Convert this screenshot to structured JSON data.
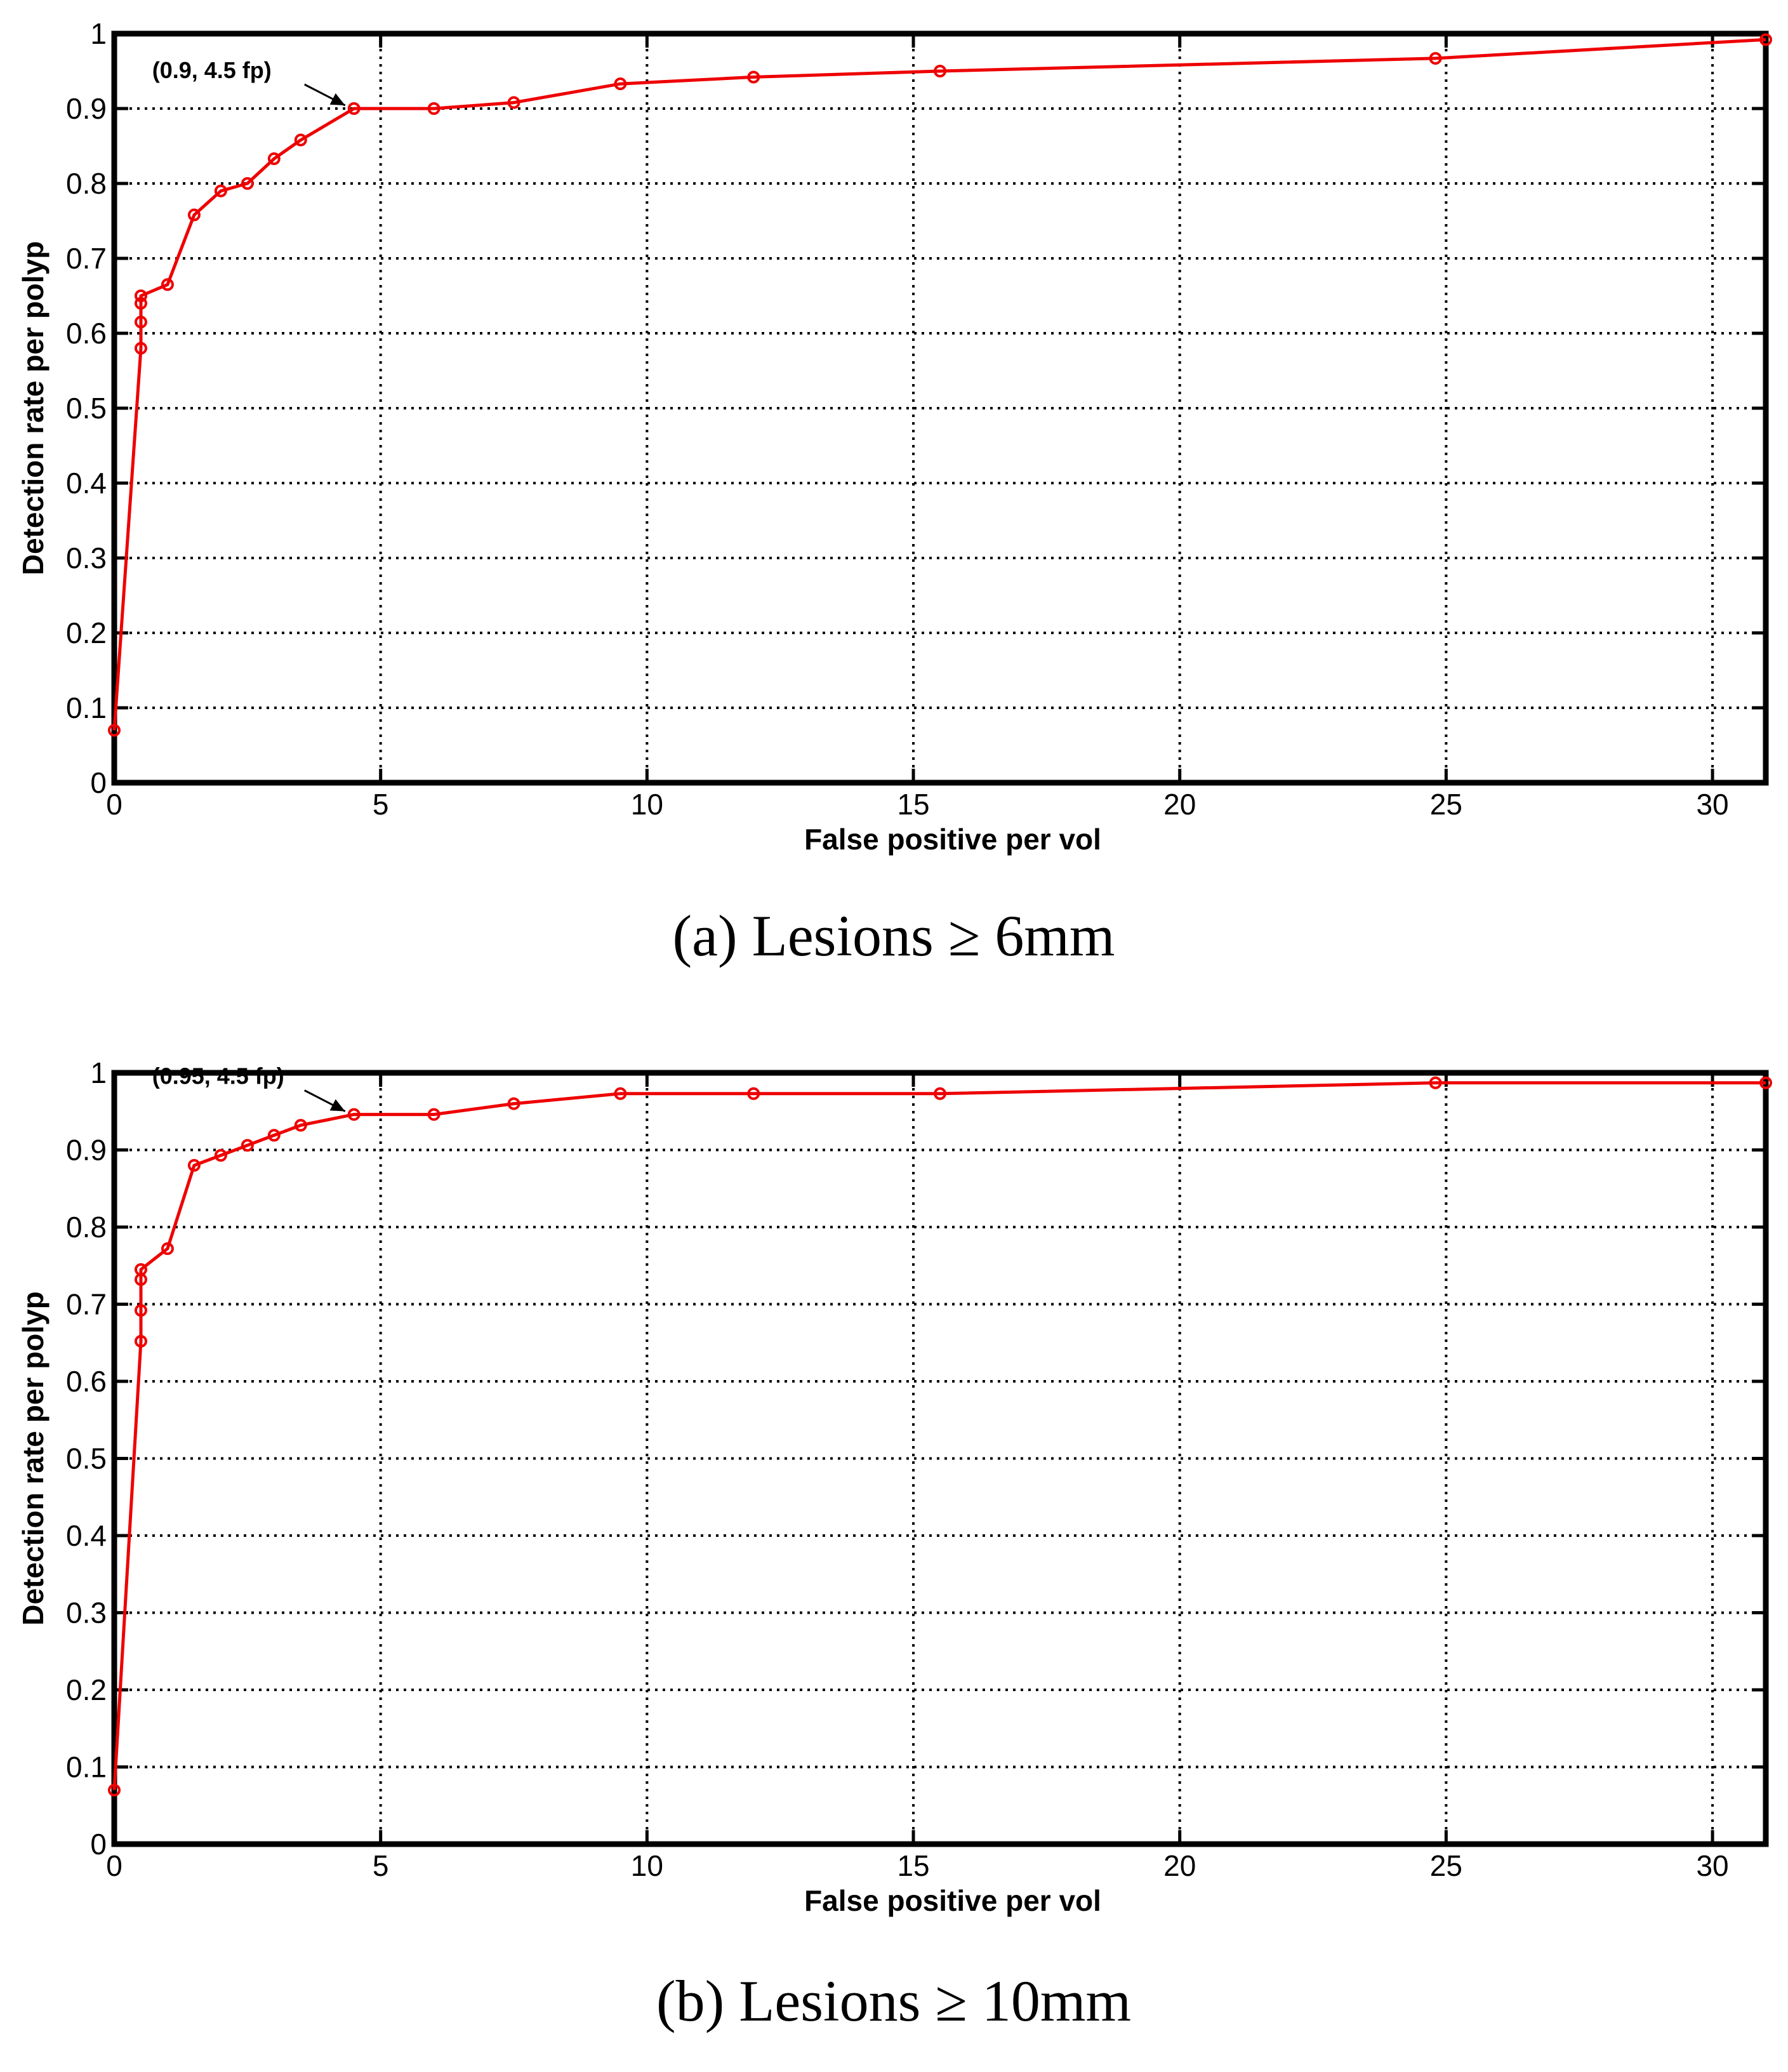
{
  "colors": {
    "series": "#ee0000",
    "axes": "#000000",
    "background": "#ffffff"
  },
  "chart_data": [
    {
      "type": "line",
      "caption": "(a) Lesions ≥ 6mm",
      "title": "",
      "xlabel": "False positive per vol",
      "ylabel": "Detection rate per polyp",
      "xlim": [
        0,
        31
      ],
      "ylim": [
        0,
        1
      ],
      "xticks": [
        0,
        5,
        10,
        15,
        20,
        25,
        30
      ],
      "yticks": [
        0,
        0.1,
        0.2,
        0.3,
        0.4,
        0.5,
        0.6,
        0.7,
        0.8,
        0.9,
        1
      ],
      "grid": true,
      "series": [
        {
          "x": [
            0,
            0.5,
            0.5,
            0.5,
            0.5,
            1,
            1.5,
            2,
            2.5,
            3,
            3.5,
            4.5,
            6,
            7.5,
            9.5,
            12,
            15.5,
            24.8,
            31
          ],
          "y": [
            0.07,
            0.58,
            0.615,
            0.64,
            0.65,
            0.665,
            0.758,
            0.79,
            0.8,
            0.833,
            0.858,
            0.9,
            0.9,
            0.908,
            0.933,
            0.942,
            0.95,
            0.967,
            0.992
          ]
        }
      ],
      "annotation": {
        "text": "(0.9, 4.5 fp)",
        "x": 4.5,
        "y": 0.9
      }
    },
    {
      "type": "line",
      "caption": "(b) Lesions ≥ 10mm",
      "title": "",
      "xlabel": "False positive per vol",
      "ylabel": "Detection rate per polyp",
      "xlim": [
        0,
        31
      ],
      "ylim": [
        0,
        1
      ],
      "xticks": [
        0,
        5,
        10,
        15,
        20,
        25,
        30
      ],
      "yticks": [
        0,
        0.1,
        0.2,
        0.3,
        0.4,
        0.5,
        0.6,
        0.7,
        0.8,
        0.9,
        1
      ],
      "grid": true,
      "series": [
        {
          "x": [
            0,
            0.5,
            0.5,
            0.5,
            0.5,
            1,
            1.5,
            2,
            2.5,
            3,
            3.5,
            4.5,
            6,
            7.5,
            9.5,
            12,
            15.5,
            24.8,
            31
          ],
          "y": [
            0.07,
            0.652,
            0.692,
            0.732,
            0.745,
            0.772,
            0.88,
            0.893,
            0.906,
            0.919,
            0.932,
            0.946,
            0.946,
            0.96,
            0.973,
            0.973,
            0.973,
            0.987,
            0.987
          ]
        }
      ],
      "annotation": {
        "text": "(0.95, 4.5 fp)",
        "x": 4.5,
        "y": 0.946
      }
    }
  ]
}
